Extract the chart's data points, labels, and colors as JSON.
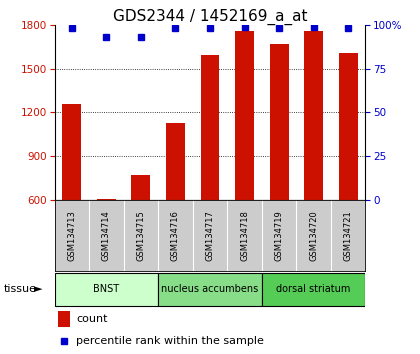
{
  "title": "GDS2344 / 1452169_a_at",
  "samples": [
    "GSM134713",
    "GSM134714",
    "GSM134715",
    "GSM134716",
    "GSM134717",
    "GSM134718",
    "GSM134719",
    "GSM134720",
    "GSM134721"
  ],
  "counts": [
    1255,
    608,
    770,
    1130,
    1590,
    1760,
    1670,
    1760,
    1610
  ],
  "percentiles": [
    98,
    93,
    93,
    98,
    98,
    99,
    98,
    99,
    98
  ],
  "tissues": [
    {
      "label": "BNST",
      "start": 0,
      "end": 3,
      "color": "#ccffcc"
    },
    {
      "label": "nucleus accumbens",
      "start": 3,
      "end": 6,
      "color": "#88dd88"
    },
    {
      "label": "dorsal striatum",
      "start": 6,
      "end": 9,
      "color": "#55cc55"
    }
  ],
  "ylim_left": [
    600,
    1800
  ],
  "ylim_right": [
    0,
    100
  ],
  "yticks_left": [
    600,
    900,
    1200,
    1500,
    1800
  ],
  "yticks_right": [
    0,
    25,
    50,
    75,
    100
  ],
  "bar_color": "#cc1100",
  "dot_color": "#0000cc",
  "title_fontsize": 11,
  "tick_fontsize": 7.5,
  "background_color": "#ffffff",
  "plot_bg": "#ffffff",
  "sample_bg": "#cccccc"
}
